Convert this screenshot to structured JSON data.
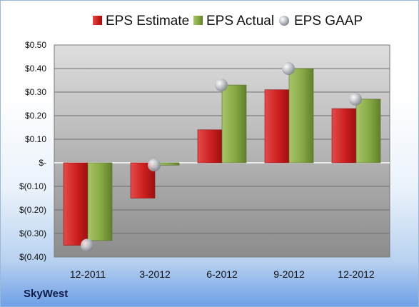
{
  "company": "SkyWest",
  "colors": {
    "estimate": "#cc1f1f",
    "actual": "#86a944",
    "gaap": "#b8bcc4"
  },
  "chart_data": {
    "type": "bar",
    "title": "",
    "xlabel": "",
    "ylabel": "",
    "categories": [
      "12-2011",
      "3-2012",
      "6-2012",
      "9-2012",
      "12-2012"
    ],
    "series": [
      {
        "name": "EPS Estimate",
        "type": "bar",
        "values": [
          -0.35,
          -0.15,
          0.14,
          0.31,
          0.23
        ]
      },
      {
        "name": "EPS Actual",
        "type": "bar",
        "values": [
          -0.33,
          -0.01,
          0.33,
          0.4,
          0.27
        ]
      },
      {
        "name": "EPS GAAP",
        "type": "scatter",
        "values": [
          -0.35,
          -0.01,
          0.33,
          0.4,
          0.27
        ]
      }
    ],
    "yticks": [
      0.5,
      0.4,
      0.3,
      0.2,
      0.1,
      0,
      -0.1,
      -0.2,
      -0.3,
      -0.4
    ],
    "ytick_labels": [
      "$0.50",
      "$0.40",
      "$0.30",
      "$0.20",
      "$0.10",
      "$-",
      "$(0.10)",
      "$(0.20)",
      "$(0.30)",
      "$(0.40)"
    ],
    "ylim": [
      -0.4,
      0.5
    ],
    "grid": true,
    "legend": "top"
  }
}
